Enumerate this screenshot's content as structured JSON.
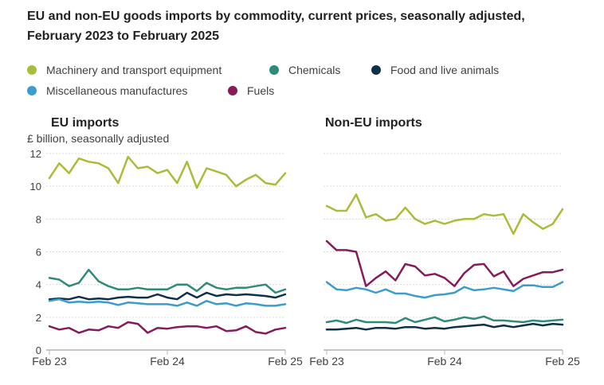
{
  "title": "EU and non-EU goods imports by commodity, current prices, seasonally adjusted, February 2023 to February 2025",
  "legend": [
    {
      "label": "Machinery and transport equipment",
      "color": "#a8bd3a"
    },
    {
      "label": "Chemicals",
      "color": "#27a0cc"
    },
    {
      "label": "Food and live animals",
      "color": "#003c57"
    },
    {
      "label": "Miscellaneous manufactures",
      "color": "#3a9dcd"
    },
    {
      "label": "Fuels",
      "color": "#871a5b"
    }
  ],
  "chart_data": [
    {
      "type": "line",
      "title": "EU imports",
      "ylabel": "£ billion, seasonally adjusted",
      "ylim": [
        0,
        12
      ],
      "yticks": [
        0,
        2,
        4,
        6,
        8,
        10,
        12
      ],
      "x_tick_labels": [
        "Feb 23",
        "Feb 24",
        "Feb 25"
      ],
      "x_tick_index": [
        0,
        12,
        24
      ],
      "series": [
        {
          "name": "Machinery and transport equipment",
          "color": "#a8bd3a",
          "values": [
            10.5,
            11.4,
            10.8,
            11.7,
            11.5,
            11.4,
            11.1,
            10.2,
            11.8,
            11.1,
            11.2,
            10.8,
            11.0,
            10.2,
            11.5,
            9.9,
            11.1,
            10.9,
            10.7,
            10.0,
            10.4,
            10.7,
            10.2,
            10.1,
            10.8
          ]
        },
        {
          "name": "Chemicals",
          "color": "#2e8b7a",
          "values": [
            4.4,
            4.3,
            3.9,
            4.1,
            4.9,
            4.2,
            3.9,
            3.7,
            3.7,
            3.8,
            3.7,
            3.7,
            3.7,
            4.0,
            4.0,
            3.6,
            4.1,
            3.8,
            3.7,
            3.8,
            3.8,
            3.9,
            4.0,
            3.5,
            3.7
          ]
        },
        {
          "name": "Food and live animals",
          "color": "#0f3049",
          "values": [
            3.1,
            3.15,
            3.1,
            3.25,
            3.1,
            3.15,
            3.1,
            3.2,
            3.25,
            3.2,
            3.2,
            3.4,
            3.2,
            3.1,
            3.5,
            3.2,
            3.5,
            3.3,
            3.4,
            3.35,
            3.4,
            3.35,
            3.3,
            3.2,
            3.4
          ]
        },
        {
          "name": "Miscellaneous manufactures",
          "color": "#3a9dcd",
          "values": [
            3.0,
            3.1,
            2.9,
            2.95,
            2.9,
            2.95,
            2.9,
            2.75,
            2.9,
            2.85,
            2.8,
            2.8,
            2.8,
            2.7,
            2.9,
            2.7,
            3.0,
            2.8,
            2.85,
            2.7,
            2.85,
            2.8,
            2.7,
            2.7,
            2.8
          ]
        },
        {
          "name": "Fuels",
          "color": "#871a5b",
          "values": [
            1.45,
            1.25,
            1.35,
            1.05,
            1.25,
            1.2,
            1.45,
            1.35,
            1.7,
            1.6,
            1.05,
            1.35,
            1.3,
            1.4,
            1.45,
            1.45,
            1.35,
            1.45,
            1.15,
            1.2,
            1.45,
            1.1,
            1.0,
            1.25,
            1.35
          ]
        }
      ]
    },
    {
      "type": "line",
      "title": "Non-EU imports",
      "ylabel": "",
      "ylim": [
        0,
        12
      ],
      "yticks": [
        0,
        2,
        4,
        6,
        8,
        10,
        12
      ],
      "x_tick_labels": [
        "Feb 23",
        "Feb 24",
        "Feb 25"
      ],
      "x_tick_index": [
        0,
        12,
        24
      ],
      "series": [
        {
          "name": "Machinery and transport equipment",
          "color": "#a8bd3a",
          "values": [
            8.8,
            8.5,
            8.5,
            9.5,
            8.1,
            8.3,
            7.9,
            8.0,
            8.7,
            8.0,
            7.7,
            7.9,
            7.7,
            7.9,
            8.0,
            8.0,
            8.3,
            8.2,
            8.3,
            7.1,
            8.3,
            7.8,
            7.4,
            7.7,
            8.6
          ]
        },
        {
          "name": "Chemicals",
          "color": "#2e8b7a",
          "values": [
            1.7,
            1.8,
            1.65,
            1.85,
            1.7,
            1.7,
            1.7,
            1.65,
            1.95,
            1.7,
            1.85,
            2.0,
            1.75,
            1.85,
            2.0,
            1.9,
            2.05,
            1.8,
            1.8,
            1.75,
            1.7,
            1.8,
            1.75,
            1.8,
            1.85
          ]
        },
        {
          "name": "Food and live animals",
          "color": "#0f3049",
          "values": [
            1.25,
            1.25,
            1.3,
            1.35,
            1.25,
            1.35,
            1.35,
            1.3,
            1.4,
            1.4,
            1.3,
            1.35,
            1.3,
            1.4,
            1.45,
            1.5,
            1.55,
            1.4,
            1.5,
            1.4,
            1.5,
            1.6,
            1.5,
            1.6,
            1.55
          ]
        },
        {
          "name": "Miscellaneous manufactures",
          "color": "#3a9dcd",
          "values": [
            4.15,
            3.7,
            3.65,
            3.8,
            3.7,
            3.5,
            3.7,
            3.45,
            3.45,
            3.3,
            3.2,
            3.35,
            3.4,
            3.5,
            3.85,
            3.65,
            3.7,
            3.8,
            3.7,
            3.6,
            3.95,
            3.95,
            3.85,
            3.85,
            4.15
          ]
        },
        {
          "name": "Fuels",
          "color": "#871a5b",
          "values": [
            6.65,
            6.1,
            6.1,
            6.0,
            3.9,
            4.4,
            4.8,
            4.25,
            5.25,
            5.1,
            4.55,
            4.65,
            4.4,
            3.9,
            4.7,
            5.2,
            5.25,
            4.5,
            4.8,
            3.9,
            4.35,
            4.55,
            4.75,
            4.75,
            4.9
          ]
        }
      ]
    }
  ]
}
